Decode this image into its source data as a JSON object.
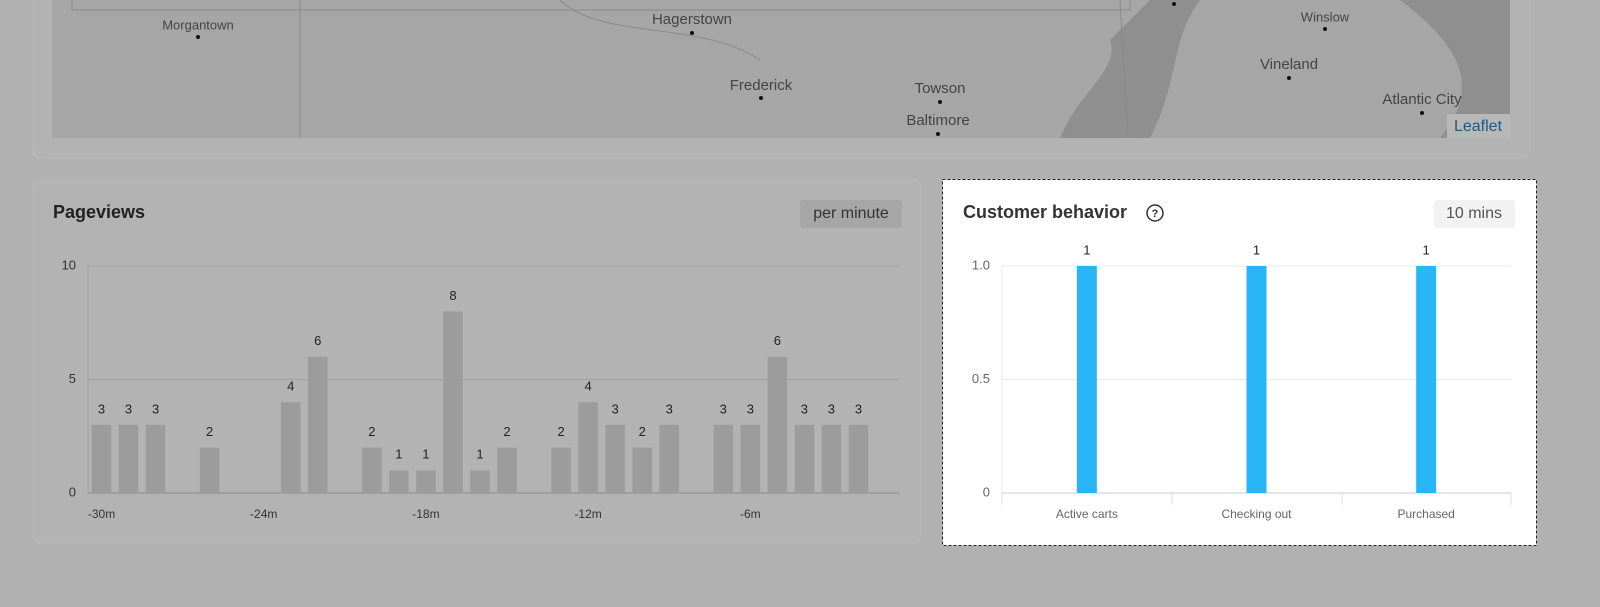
{
  "map": {
    "places": [
      "Morgantown",
      "Hagerstown",
      "Frederick",
      "Towson",
      "Baltimore",
      "Winslow",
      "Vineland",
      "Atlantic City"
    ],
    "attribution": "Leaflet"
  },
  "pageviews": {
    "title": "Pageviews",
    "badge": "per minute",
    "chart_data": {
      "type": "bar",
      "x": [
        -30,
        -29,
        -28,
        -27,
        -26,
        -25,
        -24,
        -23,
        -22,
        -21,
        -20,
        -19,
        -18,
        -17,
        -16,
        -15,
        -14,
        -13,
        -12,
        -11,
        -10,
        -9,
        -8,
        -7,
        -6,
        -5,
        -4,
        -3,
        -2
      ],
      "values": [
        3,
        3,
        3,
        null,
        2,
        null,
        null,
        4,
        6,
        null,
        2,
        1,
        1,
        8,
        1,
        2,
        null,
        2,
        4,
        3,
        2,
        3,
        null,
        3,
        3,
        6,
        3,
        3,
        3
      ],
      "color": "#9c9c9c",
      "xlim": [
        -30.5,
        -0.5
      ],
      "xticks": [
        {
          "value": -30,
          "label": "-30m"
        },
        {
          "value": -24,
          "label": "-24m"
        },
        {
          "value": -18,
          "label": "-18m"
        },
        {
          "value": -12,
          "label": "-12m"
        },
        {
          "value": -6,
          "label": "-6m"
        }
      ],
      "ylim": [
        0,
        10
      ],
      "yticks": [
        0,
        5,
        10
      ],
      "grid": true
    }
  },
  "customer_behavior": {
    "title": "Customer behavior",
    "badge": "10 mins",
    "chart_data": {
      "type": "bar",
      "categories": [
        "Active carts",
        "Checking out",
        "Purchased"
      ],
      "values": [
        1,
        1,
        1
      ],
      "color": "#29b6f6",
      "ylim": [
        0,
        1
      ],
      "yticks": [
        0,
        0.5,
        {
          "value": 1,
          "label": "1.0"
        }
      ],
      "grid": true
    }
  }
}
